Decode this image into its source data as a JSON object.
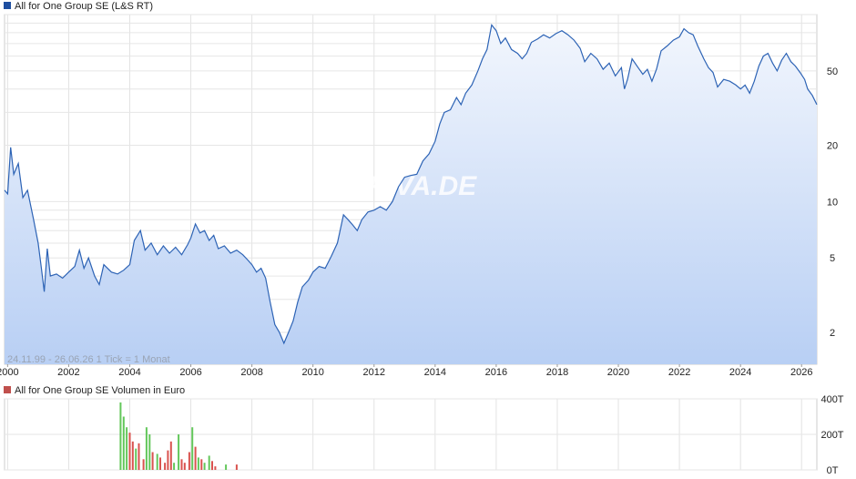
{
  "chart_data": [
    {
      "type": "area",
      "legend": "All for One Group SE (L&S RT)",
      "legend_color": "#1e4fa0",
      "line_color": "#2d63b5",
      "area_top_color": "#f2f6fd",
      "area_bottom_color": "#b8cff4",
      "y_scale": "log",
      "ylim": [
        1.35,
        100
      ],
      "xlim": [
        1999.9,
        2026.5
      ],
      "x_ticks": [
        2000,
        2002,
        2004,
        2006,
        2008,
        2010,
        2012,
        2014,
        2016,
        2018,
        2020,
        2022,
        2024,
        2026
      ],
      "x_tick_labels": [
        "2000",
        "2002",
        "2004",
        "2006",
        "2008",
        "2010",
        "2012",
        "2014",
        "2016",
        "2018",
        "2020",
        "2022",
        "2024",
        "2026"
      ],
      "y_ticks": [
        2,
        5,
        10,
        20,
        50
      ],
      "y_tick_labels": [
        "2",
        "5",
        "10",
        "20",
        "50"
      ],
      "period_label": "24.11.99 - 26.06.26   1 Tick = 1 Monat",
      "watermark": "ARIVA.DE",
      "grid": true,
      "series": [
        {
          "name": "All for One Group SE (L&S RT)",
          "points": [
            [
              1999.9,
              11.5
            ],
            [
              2000.0,
              11.0
            ],
            [
              2000.1,
              19.5
            ],
            [
              2000.2,
              14.0
            ],
            [
              2000.35,
              16.0
            ],
            [
              2000.5,
              10.5
            ],
            [
              2000.65,
              11.5
            ],
            [
              2000.85,
              8.0
            ],
            [
              2001.0,
              6.0
            ],
            [
              2001.1,
              4.5
            ],
            [
              2001.2,
              3.3
            ],
            [
              2001.3,
              5.6
            ],
            [
              2001.4,
              4.0
            ],
            [
              2001.6,
              4.1
            ],
            [
              2001.8,
              3.9
            ],
            [
              2002.0,
              4.2
            ],
            [
              2002.2,
              4.5
            ],
            [
              2002.35,
              5.5
            ],
            [
              2002.5,
              4.4
            ],
            [
              2002.65,
              5.0
            ],
            [
              2002.85,
              4.0
            ],
            [
              2003.0,
              3.6
            ],
            [
              2003.15,
              4.6
            ],
            [
              2003.4,
              4.2
            ],
            [
              2003.6,
              4.1
            ],
            [
              2003.8,
              4.3
            ],
            [
              2004.0,
              4.6
            ],
            [
              2004.15,
              6.2
            ],
            [
              2004.35,
              7.0
            ],
            [
              2004.5,
              5.5
            ],
            [
              2004.7,
              6.0
            ],
            [
              2004.9,
              5.2
            ],
            [
              2005.1,
              5.8
            ],
            [
              2005.3,
              5.3
            ],
            [
              2005.5,
              5.7
            ],
            [
              2005.7,
              5.2
            ],
            [
              2005.9,
              5.9
            ],
            [
              2006.0,
              6.4
            ],
            [
              2006.15,
              7.6
            ],
            [
              2006.3,
              6.8
            ],
            [
              2006.45,
              7.0
            ],
            [
              2006.6,
              6.2
            ],
            [
              2006.75,
              6.6
            ],
            [
              2006.9,
              5.6
            ],
            [
              2007.1,
              5.8
            ],
            [
              2007.3,
              5.3
            ],
            [
              2007.5,
              5.5
            ],
            [
              2007.7,
              5.2
            ],
            [
              2007.85,
              4.9
            ],
            [
              2008.0,
              4.6
            ],
            [
              2008.15,
              4.2
            ],
            [
              2008.3,
              4.4
            ],
            [
              2008.45,
              3.9
            ],
            [
              2008.6,
              2.9
            ],
            [
              2008.75,
              2.2
            ],
            [
              2008.9,
              2.0
            ],
            [
              2009.05,
              1.75
            ],
            [
              2009.2,
              2.0
            ],
            [
              2009.35,
              2.3
            ],
            [
              2009.5,
              2.9
            ],
            [
              2009.65,
              3.5
            ],
            [
              2009.85,
              3.8
            ],
            [
              2010.0,
              4.2
            ],
            [
              2010.2,
              4.5
            ],
            [
              2010.4,
              4.4
            ],
            [
              2010.6,
              5.1
            ],
            [
              2010.8,
              6.0
            ],
            [
              2011.0,
              8.5
            ],
            [
              2011.15,
              8.0
            ],
            [
              2011.3,
              7.5
            ],
            [
              2011.45,
              7.0
            ],
            [
              2011.6,
              8.0
            ],
            [
              2011.8,
              8.8
            ],
            [
              2012.0,
              9.0
            ],
            [
              2012.2,
              9.4
            ],
            [
              2012.4,
              9.0
            ],
            [
              2012.6,
              10.0
            ],
            [
              2012.8,
              12.0
            ],
            [
              2013.0,
              13.5
            ],
            [
              2013.2,
              13.8
            ],
            [
              2013.4,
              14.0
            ],
            [
              2013.6,
              16.5
            ],
            [
              2013.8,
              18.0
            ],
            [
              2014.0,
              21.0
            ],
            [
              2014.15,
              26.0
            ],
            [
              2014.3,
              30.0
            ],
            [
              2014.5,
              31.0
            ],
            [
              2014.7,
              36.0
            ],
            [
              2014.85,
              33.0
            ],
            [
              2015.0,
              38.0
            ],
            [
              2015.2,
              42.0
            ],
            [
              2015.4,
              50.0
            ],
            [
              2015.55,
              58.0
            ],
            [
              2015.7,
              65.0
            ],
            [
              2015.85,
              88.0
            ],
            [
              2016.0,
              82.0
            ],
            [
              2016.15,
              70.0
            ],
            [
              2016.3,
              75.0
            ],
            [
              2016.5,
              65.0
            ],
            [
              2016.7,
              62.0
            ],
            [
              2016.85,
              58.0
            ],
            [
              2017.0,
              62.0
            ],
            [
              2017.15,
              71.0
            ],
            [
              2017.35,
              74.0
            ],
            [
              2017.55,
              78.0
            ],
            [
              2017.75,
              75.0
            ],
            [
              2017.95,
              79.0
            ],
            [
              2018.15,
              82.0
            ],
            [
              2018.35,
              78.0
            ],
            [
              2018.55,
              73.0
            ],
            [
              2018.75,
              66.0
            ],
            [
              2018.9,
              56.0
            ],
            [
              2019.1,
              62.0
            ],
            [
              2019.3,
              58.0
            ],
            [
              2019.5,
              51.0
            ],
            [
              2019.7,
              55.0
            ],
            [
              2019.9,
              47.0
            ],
            [
              2020.1,
              52.0
            ],
            [
              2020.2,
              40.0
            ],
            [
              2020.3,
              45.0
            ],
            [
              2020.45,
              58.0
            ],
            [
              2020.65,
              52.0
            ],
            [
              2020.8,
              48.0
            ],
            [
              2020.95,
              51.0
            ],
            [
              2021.1,
              44.0
            ],
            [
              2021.25,
              51.0
            ],
            [
              2021.4,
              64.0
            ],
            [
              2021.6,
              68.0
            ],
            [
              2021.8,
              73.0
            ],
            [
              2022.0,
              76.0
            ],
            [
              2022.15,
              84.0
            ],
            [
              2022.3,
              80.0
            ],
            [
              2022.45,
              78.0
            ],
            [
              2022.6,
              68.0
            ],
            [
              2022.8,
              58.0
            ],
            [
              2022.95,
              52.0
            ],
            [
              2023.1,
              49.0
            ],
            [
              2023.25,
              41.0
            ],
            [
              2023.45,
              45.0
            ],
            [
              2023.65,
              44.0
            ],
            [
              2023.85,
              42.0
            ],
            [
              2024.0,
              40.0
            ],
            [
              2024.15,
              42.0
            ],
            [
              2024.3,
              38.0
            ],
            [
              2024.45,
              44.0
            ],
            [
              2024.6,
              53.0
            ],
            [
              2024.75,
              60.0
            ],
            [
              2024.9,
              62.0
            ],
            [
              2025.05,
              55.0
            ],
            [
              2025.2,
              50.0
            ],
            [
              2025.35,
              57.0
            ],
            [
              2025.5,
              62.0
            ],
            [
              2025.65,
              56.0
            ],
            [
              2025.8,
              53.0
            ],
            [
              2025.95,
              49.0
            ],
            [
              2026.1,
              45.0
            ],
            [
              2026.2,
              40.0
            ],
            [
              2026.35,
              37.0
            ],
            [
              2026.5,
              33.0
            ]
          ]
        }
      ]
    },
    {
      "type": "bar",
      "legend": "All for One Group SE Volumen in Euro",
      "legend_color": "#c0504d",
      "up_color": "#63c75b",
      "down_color": "#d9534f",
      "ylim": [
        0,
        400
      ],
      "y_ticks": [
        0,
        200,
        400
      ],
      "y_tick_labels": [
        "0T",
        "200T",
        "400T"
      ],
      "grid": true,
      "series": [
        {
          "name": "All for One Group SE Volumen in Euro",
          "bars": [
            [
              2003.7,
              380,
              "up"
            ],
            [
              2003.8,
              300,
              "up"
            ],
            [
              2003.9,
              240,
              "up"
            ],
            [
              2004.0,
              210,
              "down"
            ],
            [
              2004.1,
              160,
              "down"
            ],
            [
              2004.2,
              120,
              "up"
            ],
            [
              2004.3,
              150,
              "down"
            ],
            [
              2004.45,
              60,
              "down"
            ],
            [
              2004.55,
              240,
              "up"
            ],
            [
              2004.65,
              200,
              "up"
            ],
            [
              2004.75,
              100,
              "down"
            ],
            [
              2004.9,
              90,
              "up"
            ],
            [
              2005.0,
              70,
              "down"
            ],
            [
              2005.15,
              40,
              "down"
            ],
            [
              2005.25,
              110,
              "down"
            ],
            [
              2005.35,
              160,
              "down"
            ],
            [
              2005.45,
              40,
              "up"
            ],
            [
              2005.6,
              200,
              "up"
            ],
            [
              2005.7,
              60,
              "down"
            ],
            [
              2005.8,
              40,
              "down"
            ],
            [
              2005.95,
              100,
              "down"
            ],
            [
              2006.05,
              240,
              "up"
            ],
            [
              2006.15,
              130,
              "down"
            ],
            [
              2006.25,
              70,
              "up"
            ],
            [
              2006.35,
              60,
              "down"
            ],
            [
              2006.45,
              40,
              "up"
            ],
            [
              2006.6,
              80,
              "up"
            ],
            [
              2006.7,
              50,
              "down"
            ],
            [
              2006.8,
              20,
              "down"
            ],
            [
              2007.15,
              30,
              "up"
            ],
            [
              2007.5,
              30,
              "down"
            ]
          ]
        }
      ]
    }
  ]
}
